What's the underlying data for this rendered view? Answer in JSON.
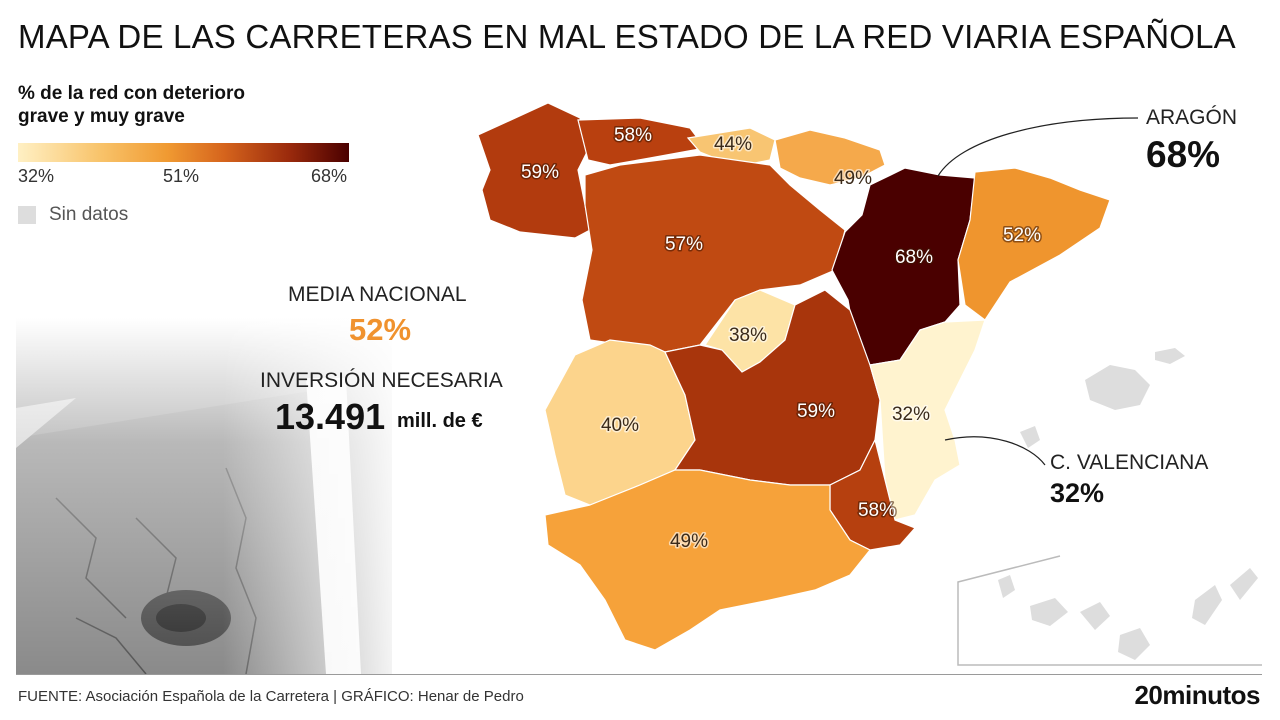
{
  "title": "MAPA DE LAS CARRETERAS EN MAL ESTADO DE LA RED VIARIA ESPAÑOLA",
  "legend": {
    "title_line1": "% de la red con deterioro",
    "title_line2": "grave y muy grave",
    "min_label": "32%",
    "mid_label": "51%",
    "max_label": "68%",
    "nodata_label": "Sin datos",
    "nodata_color": "#dddddd"
  },
  "stats": {
    "average_label": "MEDIA NACIONAL",
    "average_value": "52%",
    "average_color": "#f0922e",
    "investment_label": "INVERSIÓN NECESARIA",
    "investment_value": "13.491",
    "investment_unit": "mill. de €"
  },
  "regions": [
    {
      "label": "59%",
      "value": 59,
      "color": "#b23b0e"
    },
    {
      "label": "58%",
      "value": 58,
      "color": "#b9400f"
    },
    {
      "label": "44%",
      "value": 44,
      "color": "#f8c572"
    },
    {
      "label": "49%",
      "value": 49,
      "color": "#f5a94b"
    },
    {
      "label": "57%",
      "value": 57,
      "color": "#c04a12"
    },
    {
      "label": "68%",
      "value": 68,
      "color": "#4a0000"
    },
    {
      "label": "52%",
      "value": 52,
      "color": "#ef952e"
    },
    {
      "label": "38%",
      "value": 38,
      "color": "#fde3a6"
    },
    {
      "label": "40%",
      "value": 40,
      "color": "#fcd48c"
    },
    {
      "label": "59%",
      "value": 59,
      "color": "#a8350c"
    },
    {
      "label": "32%",
      "value": 32,
      "color": "#fff3cf"
    },
    {
      "label": "58%",
      "value": 58,
      "color": "#b6400f"
    },
    {
      "label": "49%",
      "value": 49,
      "color": "#f6a23a"
    }
  ],
  "callouts": {
    "aragon_name": "ARAGÓN",
    "aragon_value": "68%",
    "valencia_name": "C. VALENCIANA",
    "valencia_value": "32%"
  },
  "footer": {
    "source": "FUENTE: Asociación Española de la Carretera  |  GRÁFICO: Henar de Pedro",
    "brand": "20minutos"
  }
}
